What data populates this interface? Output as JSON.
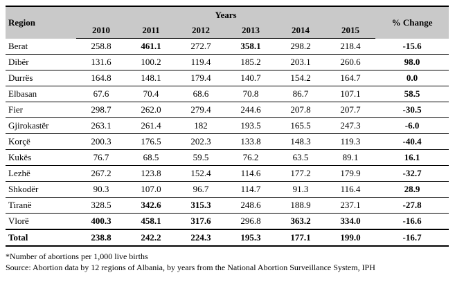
{
  "header": {
    "region_label": "Region",
    "years_label": "Years",
    "change_label": "% Change",
    "years": [
      "2010",
      "2011",
      "2012",
      "2013",
      "2014",
      "2015"
    ]
  },
  "rows": [
    {
      "region": "Berat",
      "values": [
        "258.8",
        "461.1",
        "272.7",
        "358.1",
        "298.2",
        "218.4"
      ],
      "bold": [
        false,
        true,
        false,
        true,
        false,
        false
      ],
      "change": "-15.6"
    },
    {
      "region": "Dibër",
      "values": [
        "131.6",
        "100.2",
        "119.4",
        "185.2",
        "203.1",
        "260.6"
      ],
      "bold": [
        false,
        false,
        false,
        false,
        false,
        false
      ],
      "change": "98.0"
    },
    {
      "region": "Durrës",
      "values": [
        "164.8",
        "148.1",
        "179.4",
        "140.7",
        "154.2",
        "164.7"
      ],
      "bold": [
        false,
        false,
        false,
        false,
        false,
        false
      ],
      "change": "0.0"
    },
    {
      "region": "Elbasan",
      "values": [
        "67.6",
        "70.4",
        "68.6",
        "70.8",
        "86.7",
        "107.1"
      ],
      "bold": [
        false,
        false,
        false,
        false,
        false,
        false
      ],
      "change": "58.5"
    },
    {
      "region": "Fier",
      "values": [
        "298.7",
        "262.0",
        "279.4",
        "244.6",
        "207.8",
        "207.7"
      ],
      "bold": [
        false,
        false,
        false,
        false,
        false,
        false
      ],
      "change": "-30.5"
    },
    {
      "region": "Gjirokastër",
      "values": [
        "263.1",
        "261.4",
        "182",
        "193.5",
        "165.5",
        "247.3"
      ],
      "bold": [
        false,
        false,
        false,
        false,
        false,
        false
      ],
      "change": "-6.0"
    },
    {
      "region": "Korçë",
      "values": [
        "200.3",
        "176.5",
        "202.3",
        "133.8",
        "148.3",
        "119.3"
      ],
      "bold": [
        false,
        false,
        false,
        false,
        false,
        false
      ],
      "change": "-40.4"
    },
    {
      "region": "Kukës",
      "values": [
        "76.7",
        "68.5",
        "59.5",
        "76.2",
        "63.5",
        "89.1"
      ],
      "bold": [
        false,
        false,
        false,
        false,
        false,
        false
      ],
      "change": "16.1"
    },
    {
      "region": "Lezhë",
      "values": [
        "267.2",
        "123.8",
        "152.4",
        "114.6",
        "177.2",
        "179.9"
      ],
      "bold": [
        false,
        false,
        false,
        false,
        false,
        false
      ],
      "change": "-32.7"
    },
    {
      "region": "Shkodër",
      "values": [
        "90.3",
        "107.0",
        "96.7",
        "114.7",
        "91.3",
        "116.4"
      ],
      "bold": [
        false,
        false,
        false,
        false,
        false,
        false
      ],
      "change": "28.9"
    },
    {
      "region": "Tiranë",
      "values": [
        "328.5",
        "342.6",
        "315.3",
        "248.6",
        "188.9",
        "237.1"
      ],
      "bold": [
        false,
        true,
        true,
        false,
        false,
        false
      ],
      "change": "-27.8"
    },
    {
      "region": "Vlorë",
      "values": [
        "400.3",
        "458.1",
        "317.6",
        "296.8",
        "363.2",
        "334.0"
      ],
      "bold": [
        true,
        true,
        true,
        false,
        true,
        true
      ],
      "change": "-16.6"
    }
  ],
  "total": {
    "region": "Total",
    "values": [
      "238.8",
      "242.2",
      "224.3",
      "195.3",
      "177.1",
      "199.0"
    ],
    "change": "-16.7"
  },
  "notes": {
    "footnote": "*Number of abortions per 1,000 live births",
    "source": "Source: Abortion data by 12 regions of Albania, by years from the National Abortion Surveillance System, IPH"
  }
}
